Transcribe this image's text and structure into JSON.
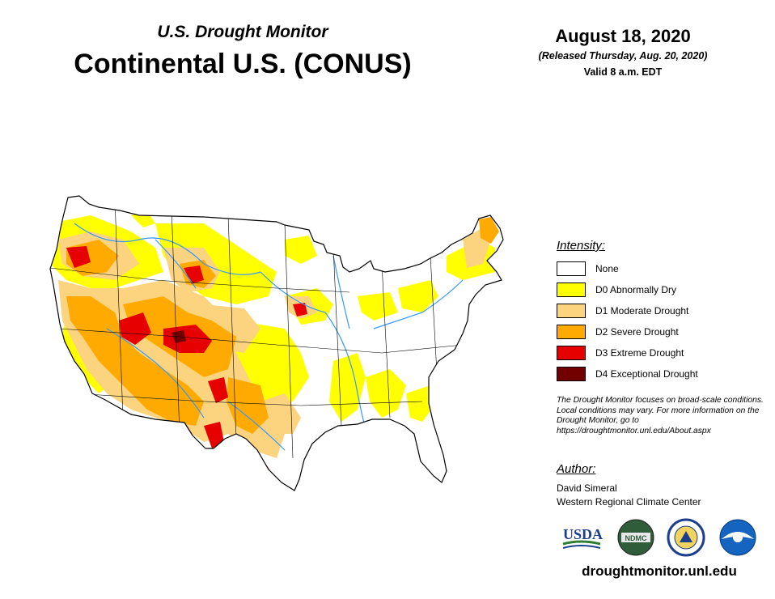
{
  "header": {
    "subtitle": "U.S. Drought Monitor",
    "title": "Continental U.S. (CONUS)",
    "date": "August 18, 2020",
    "released": "(Released Thursday, Aug. 20, 2020)",
    "valid": "Valid 8 a.m. EDT"
  },
  "legend": {
    "title": "Intensity:",
    "items": [
      {
        "label": "None",
        "color": "#ffffff"
      },
      {
        "label": "D0 Abnormally Dry",
        "color": "#ffff00"
      },
      {
        "label": "D1 Moderate Drought",
        "color": "#fcd37f"
      },
      {
        "label": "D2 Severe Drought",
        "color": "#ffaa00"
      },
      {
        "label": "D3 Extreme Drought",
        "color": "#e60000"
      },
      {
        "label": "D4 Exceptional Drought",
        "color": "#730000"
      }
    ]
  },
  "note": "The Drought Monitor focuses on broad-scale conditions. Local conditions may vary. For more information on the Drought Monitor, go to https://droughtmonitor.unl.edu/About.aspx",
  "author": {
    "title": "Author:",
    "name": "David Simeral",
    "org": "Western Regional Climate Center"
  },
  "logos": {
    "usda": "USDA",
    "ndmc": "NDMC"
  },
  "footer": {
    "url": "droughtmonitor.unl.edu"
  },
  "colors": {
    "river": "#3399ff",
    "border": "#000000"
  }
}
